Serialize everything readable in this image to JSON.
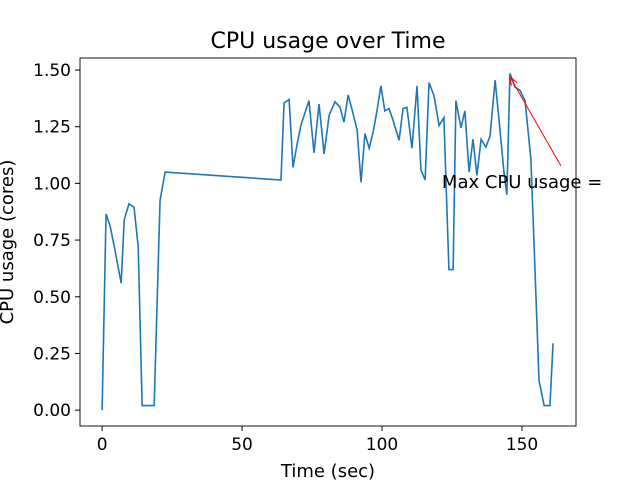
{
  "chart_data": {
    "type": "line",
    "title": "CPU usage over Time",
    "x_label": "Time (sec)",
    "y_label": "CPU usage (cores)",
    "series": [
      {
        "name": "CPU usage",
        "color": "#1f77b4",
        "x": [
          0,
          1.4,
          2.9,
          4.6,
          6.8,
          7.9,
          9.6,
          11.4,
          12.9,
          14.3,
          18.6,
          20.7,
          22.5,
          63.9,
          65,
          66.8,
          68.2,
          69.6,
          71.1,
          73.9,
          75.7,
          77.5,
          79.3,
          81.1,
          83.2,
          85,
          86.4,
          87.9,
          89.3,
          91.1,
          92.5,
          93.9,
          95.4,
          96.8,
          98.2,
          99.6,
          101,
          102.5,
          103.9,
          106.1,
          107.5,
          108.9,
          110.7,
          112.5,
          113.9,
          115.4,
          116.8,
          118.6,
          120.4,
          122.1,
          123.9,
          125.4,
          126.4,
          128.2,
          129.6,
          131.1,
          132.5,
          133.9,
          135.4,
          137.1,
          138.6,
          140.4,
          141.8,
          143.6,
          144.6,
          145.7,
          147.5,
          149.3,
          151.1,
          153.2,
          156.1,
          157.9,
          160,
          161.1
        ],
        "values": [
          0,
          0.865,
          0.81,
          0.705,
          0.56,
          0.84,
          0.91,
          0.895,
          0.72,
          0.02,
          0.02,
          0.925,
          1.05,
          1.015,
          1.355,
          1.37,
          1.07,
          1.17,
          1.26,
          1.365,
          1.135,
          1.35,
          1.13,
          1.3,
          1.36,
          1.335,
          1.27,
          1.39,
          1.325,
          1.235,
          1.005,
          1.22,
          1.155,
          1.225,
          1.32,
          1.43,
          1.32,
          1.33,
          1.28,
          1.19,
          1.33,
          1.335,
          1.155,
          1.43,
          1.06,
          1.015,
          1.445,
          1.385,
          1.255,
          1.29,
          0.62,
          0.62,
          1.365,
          1.245,
          1.32,
          1.05,
          1.195,
          1.035,
          1.195,
          1.16,
          1.21,
          1.455,
          1.28,
          1.045,
          0.95,
          1.485,
          1.425,
          1.41,
          1.365,
          1.105,
          0.13,
          0.02,
          0.02,
          0.295
        ]
      }
    ],
    "annotation": {
      "text": "Max CPU usage =",
      "color": "#ff0000",
      "xy": [
        145.7,
        1.47
      ],
      "xytext": [
        121.4,
        0.98
      ]
    },
    "xlim": [
      -7.9,
      169.3
    ],
    "ylim": [
      -0.07,
      1.553
    ],
    "xticks": [
      0,
      50,
      100,
      150
    ],
    "yticks": [
      {
        "value": 0,
        "label": "0.00"
      },
      {
        "value": 0.25,
        "label": "0.25"
      },
      {
        "value": 0.5,
        "label": "0.50"
      },
      {
        "value": 0.75,
        "label": "0.75"
      },
      {
        "value": 1,
        "label": "1.00"
      },
      {
        "value": 1.25,
        "label": "1.25"
      },
      {
        "value": 1.5,
        "label": "1.50"
      }
    ]
  }
}
